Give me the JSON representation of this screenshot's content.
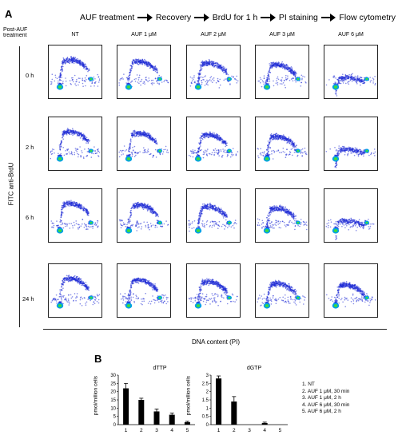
{
  "panel_a": {
    "letter": "A",
    "workflow": [
      "AUF treatment",
      "Recovery",
      "BrdU for 1 h",
      "PI staining",
      "Flow cytometry"
    ],
    "post_auf_label_line1": "Post-AUF",
    "post_auf_label_line2": "treatment",
    "columns": [
      "NT",
      "AUF 1 μM",
      "AUF 2 μM",
      "AUF 3 μM",
      "AUF 6 μM"
    ],
    "rows": [
      "0 h",
      "2 h",
      "6 h",
      "24 h"
    ],
    "y_axis_label": "FITC anti-BrdU",
    "x_axis_label": "DNA content (PI)",
    "colors": {
      "scatter": "#1f2bd6",
      "dense": "#00a0e8",
      "core": "#3ddc3d"
    }
  },
  "panel_b": {
    "letter": "B",
    "y_axis_label": "pmol/million cells",
    "legend": [
      "1. NT",
      "2. AUF 1 μM, 30 min",
      "3. AUF 1 μM, 2 h",
      "4. AUF 6 μM, 30 min",
      "5. AUF 6 μM, 2 h"
    ]
  },
  "chart_data": [
    {
      "type": "bar",
      "title": "dTTP",
      "ylabel": "pmol/million cells",
      "categories": [
        "1",
        "2",
        "3",
        "4",
        "5"
      ],
      "values": [
        22,
        15,
        8,
        6,
        1.5
      ],
      "errors": [
        3,
        1,
        1.5,
        1,
        0.5
      ],
      "ylim": [
        0,
        30
      ],
      "yticks": [
        0,
        5,
        10,
        15,
        20,
        25,
        30
      ]
    },
    {
      "type": "bar",
      "title": "dGTP",
      "ylabel": "pmol/million cells",
      "categories": [
        "1",
        "2",
        "3",
        "4",
        "5"
      ],
      "values": [
        2.8,
        1.4,
        0,
        0.1,
        0
      ],
      "errors": [
        0.15,
        0.3,
        0,
        0.05,
        0
      ],
      "ylim": [
        0,
        3
      ],
      "yticks": [
        0,
        0.5,
        1,
        1.5,
        2,
        2.5,
        3
      ]
    }
  ]
}
